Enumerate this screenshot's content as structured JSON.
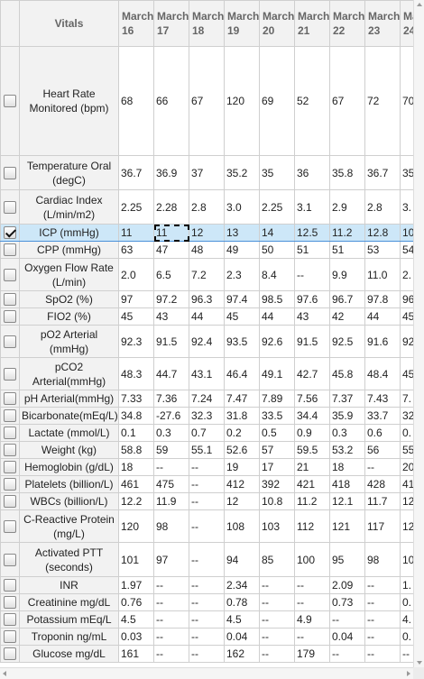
{
  "header": {
    "vitals_label": "Vitals",
    "dates": [
      {
        "month": "March",
        "day": "16"
      },
      {
        "month": "March",
        "day": "17"
      },
      {
        "month": "March",
        "day": "18"
      },
      {
        "month": "March",
        "day": "19"
      },
      {
        "month": "March",
        "day": "20"
      },
      {
        "month": "March",
        "day": "21"
      },
      {
        "month": "March",
        "day": "22"
      },
      {
        "month": "March",
        "day": "23"
      },
      {
        "month": "March",
        "day": "24"
      }
    ]
  },
  "rows": [
    {
      "label": "Heart Rate Monitored (bpm)",
      "checked": false,
      "values": [
        "68",
        "66",
        "67",
        "120",
        "69",
        "52",
        "67",
        "72",
        "70"
      ]
    },
    {
      "label": "Temperature Oral (degC)",
      "checked": false,
      "values": [
        "36.7",
        "36.9",
        "37",
        "35.2",
        "35",
        "36",
        "35.8",
        "36.7",
        "35"
      ]
    },
    {
      "label": "Cardiac Index (L/min/m2)",
      "checked": false,
      "values": [
        "2.25",
        "2.28",
        "2.8",
        "3.0",
        "2.25",
        "3.1",
        "2.9",
        "2.8",
        "3."
      ]
    },
    {
      "label": "ICP (mmHg)",
      "checked": true,
      "values": [
        "11",
        "11",
        "12",
        "13",
        "14",
        "12.5",
        "11.2",
        "12.8",
        "10"
      ]
    },
    {
      "label": "CPP (mmHg)",
      "checked": false,
      "values": [
        "63",
        "47",
        "48",
        "49",
        "50",
        "51",
        "51",
        "53",
        "54"
      ]
    },
    {
      "label": "Oxygen Flow Rate (L/min)",
      "checked": false,
      "values": [
        "2.0",
        "6.5",
        "7.2",
        "2.3",
        "8.4",
        "--",
        "9.9",
        "11.0",
        "2."
      ]
    },
    {
      "label": "SpO2 (%)",
      "checked": false,
      "values": [
        "97",
        "97.2",
        "96.3",
        "97.4",
        "98.5",
        "97.6",
        "96.7",
        "97.8",
        "96"
      ]
    },
    {
      "label": "FIO2 (%)",
      "checked": false,
      "values": [
        "45",
        "43",
        "44",
        "45",
        "44",
        "43",
        "42",
        "44",
        "45"
      ]
    },
    {
      "label": "pO2 Arterial (mmHg)",
      "checked": false,
      "values": [
        "92.3",
        "91.5",
        "92.4",
        "93.5",
        "92.6",
        "91.5",
        "92.5",
        "91.6",
        "92"
      ]
    },
    {
      "label": "pCO2 Arterial(mmHg)",
      "checked": false,
      "values": [
        "48.3",
        "44.7",
        "43.1",
        "46.4",
        "49.1",
        "42.7",
        "45.8",
        "48.4",
        "45"
      ]
    },
    {
      "label": "pH Arterial(mmHg)",
      "checked": false,
      "values": [
        "7.33",
        "7.36",
        "7.24",
        "7.47",
        "7.89",
        "7.56",
        "7.37",
        "7.43",
        "7."
      ]
    },
    {
      "label": "Bicarbonate(mEq/L)",
      "checked": false,
      "values": [
        "34.8",
        "-27.6",
        "32.3",
        "31.8",
        "33.5",
        "34.4",
        "35.9",
        "33.7",
        "32"
      ]
    },
    {
      "label": "Lactate (mmol/L)",
      "checked": false,
      "values": [
        "0.1",
        "0.3",
        "0.7",
        "0.2",
        "0.5",
        "0.9",
        "0.3",
        "0.6",
        "0."
      ]
    },
    {
      "label": "Weight (kg)",
      "checked": false,
      "values": [
        "58.8",
        "59",
        "55.1",
        "52.6",
        "57",
        "59.5",
        "53.2",
        "56",
        "55"
      ]
    },
    {
      "label": "Hemoglobin (g/dL)",
      "checked": false,
      "values": [
        "18",
        "--",
        "--",
        "19",
        "17",
        "21",
        "18",
        "--",
        "20"
      ]
    },
    {
      "label": "Platelets (billion/L)",
      "checked": false,
      "values": [
        "461",
        "475",
        "--",
        "412",
        "392",
        "421",
        "418",
        "428",
        "41"
      ]
    },
    {
      "label": "WBCs (billion/L)",
      "checked": false,
      "values": [
        "12.2",
        "11.9",
        "--",
        "12",
        "10.8",
        "11.2",
        "12.1",
        "11.7",
        "12"
      ]
    },
    {
      "label": "C-Reactive Protein (mg/L)",
      "checked": false,
      "values": [
        "120",
        "98",
        "--",
        "108",
        "103",
        "112",
        "121",
        "117",
        "12"
      ]
    },
    {
      "label": "Activated PTT (seconds)",
      "checked": false,
      "values": [
        "101",
        "97",
        "--",
        "94",
        "85",
        "100",
        "95",
        "98",
        "10"
      ]
    },
    {
      "label": "INR",
      "checked": false,
      "values": [
        "1.97",
        "--",
        "--",
        "2.34",
        "--",
        "--",
        "2.09",
        "--",
        "1."
      ]
    },
    {
      "label": "Creatinine mg/dL",
      "checked": false,
      "values": [
        "0.76",
        "--",
        "--",
        "0.78",
        "--",
        "--",
        "0.73",
        "--",
        "0."
      ]
    },
    {
      "label": "Potassium mEq/L",
      "checked": false,
      "values": [
        "4.5",
        "--",
        "--",
        "4.5",
        "--",
        "4.9",
        "--",
        "--",
        "4."
      ]
    },
    {
      "label": "Troponin ng/mL",
      "checked": false,
      "values": [
        "0.03",
        "--",
        "--",
        "0.04",
        "--",
        "--",
        "0.04",
        "--",
        "0."
      ]
    },
    {
      "label": "Glucose mg/dL",
      "checked": false,
      "values": [
        "161",
        "--",
        "--",
        "162",
        "--",
        "179",
        "--",
        "--",
        "--"
      ]
    }
  ],
  "active_cell": {
    "row": 3,
    "col": 1
  }
}
